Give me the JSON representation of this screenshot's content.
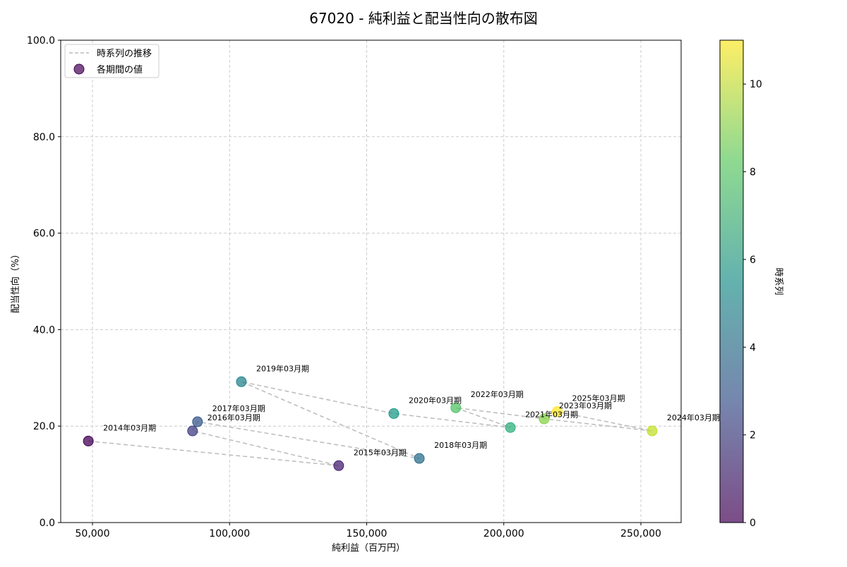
{
  "chart_data": {
    "type": "scatter",
    "title": "67020 - 純利益と配当性向の散布図",
    "xlabel": "純利益（百万円）",
    "ylabel": "配当性向（%）",
    "xlim": [
      38000,
      265000
    ],
    "ylim": [
      0,
      100
    ],
    "xticks": [
      50000,
      100000,
      150000,
      200000,
      250000
    ],
    "xtick_labels": [
      "50,000",
      "100,000",
      "150,000",
      "200,000",
      "250,000"
    ],
    "yticks": [
      0,
      20,
      40,
      60,
      80,
      100
    ],
    "ytick_labels": [
      "0.0",
      "20.0",
      "40.0",
      "60.0",
      "80.0",
      "100.0"
    ],
    "grid": true,
    "legend": {
      "placement": "top-left",
      "entries": [
        "時系列の推移",
        "各期間の値"
      ]
    },
    "colorbar": {
      "label": "時系列",
      "range": [
        0,
        11
      ],
      "ticks": [
        0,
        2,
        4,
        6,
        8,
        10
      ],
      "tick_labels": [
        "0",
        "2",
        "4",
        "6",
        "8",
        "10"
      ],
      "colormap": "viridis"
    },
    "points": [
      {
        "label": "2014年03月期",
        "x": 48500,
        "y": 16.9,
        "t": 0
      },
      {
        "label": "2015年03月期",
        "x": 139800,
        "y": 11.8,
        "t": 1
      },
      {
        "label": "2016年03月期",
        "x": 86500,
        "y": 19.0,
        "t": 2
      },
      {
        "label": "2017年03月期",
        "x": 88300,
        "y": 20.9,
        "t": 3
      },
      {
        "label": "2018年03月期",
        "x": 169200,
        "y": 13.3,
        "t": 4
      },
      {
        "label": "2019年03月期",
        "x": 104300,
        "y": 29.2,
        "t": 5
      },
      {
        "label": "2020年03月期",
        "x": 159900,
        "y": 22.6,
        "t": 6
      },
      {
        "label": "2021年03月期",
        "x": 202400,
        "y": 19.7,
        "t": 7
      },
      {
        "label": "2022年03月期",
        "x": 182500,
        "y": 23.8,
        "t": 8
      },
      {
        "label": "2023年03月期",
        "x": 214700,
        "y": 21.5,
        "t": 9
      },
      {
        "label": "2024年03月期",
        "x": 254100,
        "y": 19.0,
        "t": 10
      },
      {
        "label": "2025年03月期",
        "x": 219500,
        "y": 23.0,
        "t": 11
      }
    ]
  }
}
